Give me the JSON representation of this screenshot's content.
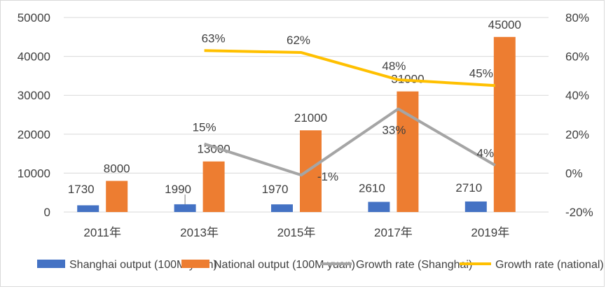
{
  "chart_data": {
    "type": "bar+line",
    "title": "",
    "categories": [
      "2011年",
      "2013年",
      "2015年",
      "2017年",
      "2019年"
    ],
    "bar_series": [
      {
        "name": "Shanghai output (100M yuan)",
        "values": [
          1730,
          1990,
          1970,
          2610,
          2710
        ],
        "color": "#4472C4"
      },
      {
        "name": "National output (100M yuan)",
        "values": [
          8000,
          13000,
          21000,
          31000,
          45000
        ],
        "color": "#ED7D31"
      }
    ],
    "line_series": [
      {
        "name": "Growth rate (Shanghai)",
        "values": [
          null,
          0.15,
          -0.01,
          0.33,
          0.04
        ],
        "labels": [
          null,
          "15%",
          "-1%",
          "33%",
          "4%"
        ],
        "color": "#A5A5A5",
        "axis": "right"
      },
      {
        "name": "Growth rate (national)",
        "values": [
          null,
          0.63,
          0.62,
          0.48,
          0.45
        ],
        "labels": [
          null,
          "63%",
          "62%",
          "48%",
          "45%"
        ],
        "color": "#FFC000",
        "axis": "right"
      }
    ],
    "y_left": {
      "min": 0,
      "max": 50000,
      "ticks": [
        "0",
        "10000",
        "20000",
        "30000",
        "40000",
        "50000"
      ]
    },
    "y_right": {
      "min": -0.2,
      "max": 0.8,
      "ticks": [
        "-20%",
        "0%",
        "20%",
        "40%",
        "60%",
        "80%"
      ]
    },
    "grid": true,
    "legend_position": "bottom"
  }
}
